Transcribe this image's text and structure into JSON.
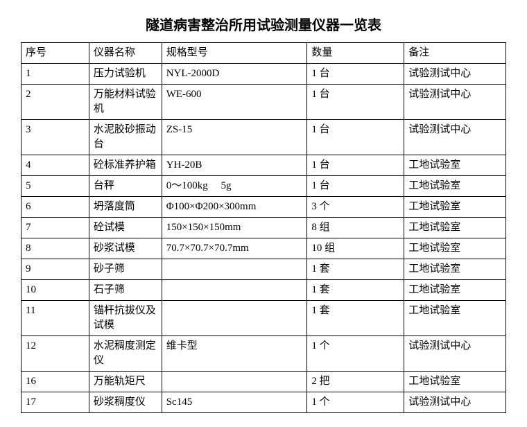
{
  "title": "隧道病害整治所用试验测量仪器一览表",
  "table": {
    "columns": [
      "序号",
      "仪器名称",
      "规格型号",
      "数量",
      "备注"
    ],
    "rows": [
      [
        "1",
        "压力试验机",
        "NYL-2000D",
        "1 台",
        "试验测试中心"
      ],
      [
        "2",
        "万能材料试验机",
        "WE-600",
        "1 台",
        "试验测试中心"
      ],
      [
        "3",
        "水泥胶砂振动台",
        "ZS-15",
        "1 台",
        "试验测试中心"
      ],
      [
        "4",
        "砼标准养护箱",
        "YH-20B",
        "1 台",
        "工地试验室"
      ],
      [
        "5",
        "台秤",
        "0～100kg　 5g",
        "1 台",
        "工地试验室"
      ],
      [
        "6",
        "坍落度筒",
        "Φ100×Φ200×300mm",
        "3 个",
        "工地试验室"
      ],
      [
        "7",
        "砼试模",
        "150×150×150mm",
        "8 组",
        "工地试验室"
      ],
      [
        "8",
        "砂浆试模",
        "70.7×70.7×70.7mm",
        "10 组",
        "工地试验室"
      ],
      [
        "9",
        "砂子筛",
        "",
        "1 套",
        "工地试验室"
      ],
      [
        "10",
        "石子筛",
        "",
        "1 套",
        "工地试验室"
      ],
      [
        "11",
        "锚杆抗拔仪及试模",
        "",
        "1 套",
        "工地试验室"
      ],
      [
        "12",
        "水泥稠度测定仪",
        "维卡型",
        "1 个",
        "试验测试中心"
      ],
      [
        "16",
        "万能轨矩尺",
        "",
        "2 把",
        "工地试验室"
      ],
      [
        "17",
        "砂浆稠度仪",
        "Sc145",
        "1 个",
        "试验测试中心"
      ]
    ],
    "styling": {
      "border_color": "#000000",
      "text_color": "#000000",
      "background_color": "#ffffff",
      "title_fontsize": 20,
      "cell_fontsize": 15,
      "font_family": "SimSun",
      "column_widths_pct": [
        14,
        15,
        30,
        20,
        21
      ]
    }
  }
}
